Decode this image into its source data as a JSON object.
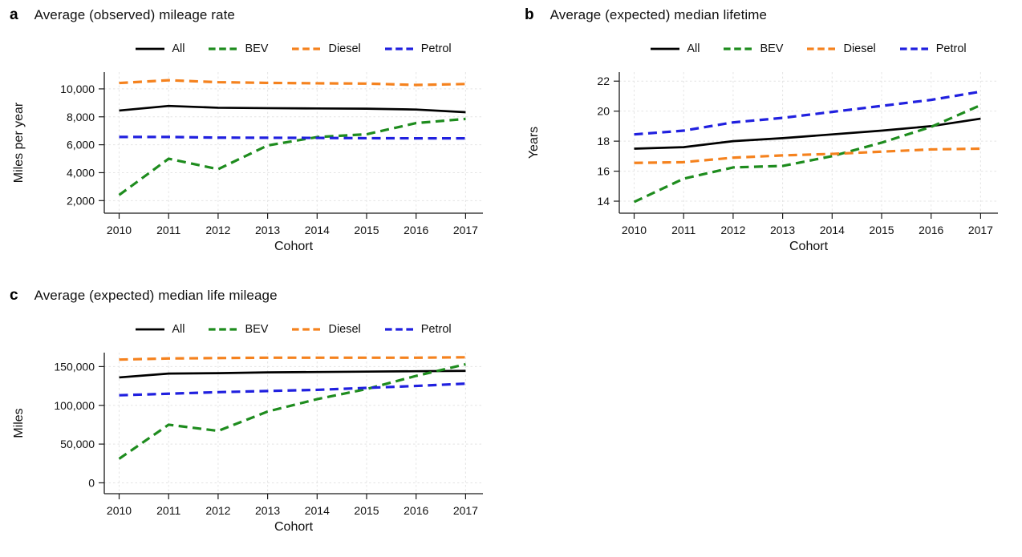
{
  "style": {
    "background": "#ffffff",
    "grid_color": "#e4e4e4",
    "axis_color": "#1a1a1a",
    "text_color": "#111111"
  },
  "chart_data": [
    {
      "type": "line",
      "panel_letter": "a",
      "title": "Average (observed) mileage rate",
      "xlabel": "Cohort",
      "ylabel": "Miles per year",
      "x": [
        2010,
        2011,
        2012,
        2013,
        2014,
        2015,
        2016,
        2017
      ],
      "xlim": [
        2009.7,
        2017.35
      ],
      "ylim": [
        1100,
        11200
      ],
      "yticks": [
        2000,
        4000,
        6000,
        8000,
        10000
      ],
      "ytick_labels": [
        "2,000",
        "4,000",
        "6,000",
        "8,000",
        "10,000"
      ],
      "grid": true,
      "legend_position": "top",
      "series": [
        {
          "name": "All",
          "color": "#000000",
          "dash": "solid",
          "values": [
            8450,
            8780,
            8650,
            8620,
            8600,
            8580,
            8520,
            8330
          ]
        },
        {
          "name": "BEV",
          "color": "#1e8c1e",
          "dash": "dashed",
          "values": [
            2400,
            5000,
            4250,
            5950,
            6550,
            6750,
            7550,
            7850
          ]
        },
        {
          "name": "Diesel",
          "color": "#f5821e",
          "dash": "dashed",
          "values": [
            10420,
            10620,
            10480,
            10430,
            10400,
            10380,
            10280,
            10350
          ]
        },
        {
          "name": "Petrol",
          "color": "#2020df",
          "dash": "dashed",
          "values": [
            6560,
            6560,
            6510,
            6500,
            6490,
            6470,
            6460,
            6460
          ]
        }
      ]
    },
    {
      "type": "line",
      "panel_letter": "b",
      "title": "Average (expected) median lifetime",
      "xlabel": "Cohort",
      "ylabel": "Years",
      "x": [
        2010,
        2011,
        2012,
        2013,
        2014,
        2015,
        2016,
        2017
      ],
      "xlim": [
        2009.7,
        2017.35
      ],
      "ylim": [
        13.2,
        22.6
      ],
      "yticks": [
        14,
        16,
        18,
        20,
        22
      ],
      "ytick_labels": [
        "14",
        "16",
        "18",
        "20",
        "22"
      ],
      "grid": true,
      "legend_position": "top",
      "series": [
        {
          "name": "All",
          "color": "#000000",
          "dash": "solid",
          "values": [
            17.5,
            17.6,
            18.0,
            18.2,
            18.45,
            18.7,
            19.0,
            19.5
          ]
        },
        {
          "name": "BEV",
          "color": "#1e8c1e",
          "dash": "dashed",
          "values": [
            13.95,
            15.5,
            16.25,
            16.35,
            17.0,
            17.9,
            18.95,
            20.4
          ]
        },
        {
          "name": "Diesel",
          "color": "#f5821e",
          "dash": "dashed",
          "values": [
            16.55,
            16.6,
            16.9,
            17.05,
            17.15,
            17.3,
            17.45,
            17.5
          ]
        },
        {
          "name": "Petrol",
          "color": "#2020df",
          "dash": "dashed",
          "values": [
            18.45,
            18.7,
            19.25,
            19.55,
            19.95,
            20.35,
            20.75,
            21.3
          ]
        }
      ]
    },
    {
      "type": "line",
      "panel_letter": "c",
      "title": "Average (expected) median life mileage",
      "xlabel": "Cohort",
      "ylabel": "Miles",
      "x": [
        2010,
        2011,
        2012,
        2013,
        2014,
        2015,
        2016,
        2017
      ],
      "xlim": [
        2009.7,
        2017.35
      ],
      "ylim": [
        -14000,
        168000
      ],
      "yticks": [
        0,
        50000,
        100000,
        150000
      ],
      "ytick_labels": [
        "0",
        "50,000",
        "100,000",
        "150,000"
      ],
      "grid": true,
      "legend_position": "top",
      "series": [
        {
          "name": "All",
          "color": "#000000",
          "dash": "solid",
          "values": [
            136000,
            141000,
            141500,
            142500,
            143000,
            143500,
            144000,
            144500
          ]
        },
        {
          "name": "BEV",
          "color": "#1e8c1e",
          "dash": "dashed",
          "values": [
            31000,
            75000,
            67000,
            92000,
            108000,
            121000,
            138000,
            153000
          ]
        },
        {
          "name": "Diesel",
          "color": "#f5821e",
          "dash": "dashed",
          "values": [
            159000,
            160500,
            161000,
            161500,
            161500,
            161500,
            161500,
            162000
          ]
        },
        {
          "name": "Petrol",
          "color": "#2020df",
          "dash": "dashed",
          "values": [
            113000,
            115000,
            117000,
            118500,
            120000,
            122500,
            125000,
            128000
          ]
        }
      ]
    }
  ]
}
